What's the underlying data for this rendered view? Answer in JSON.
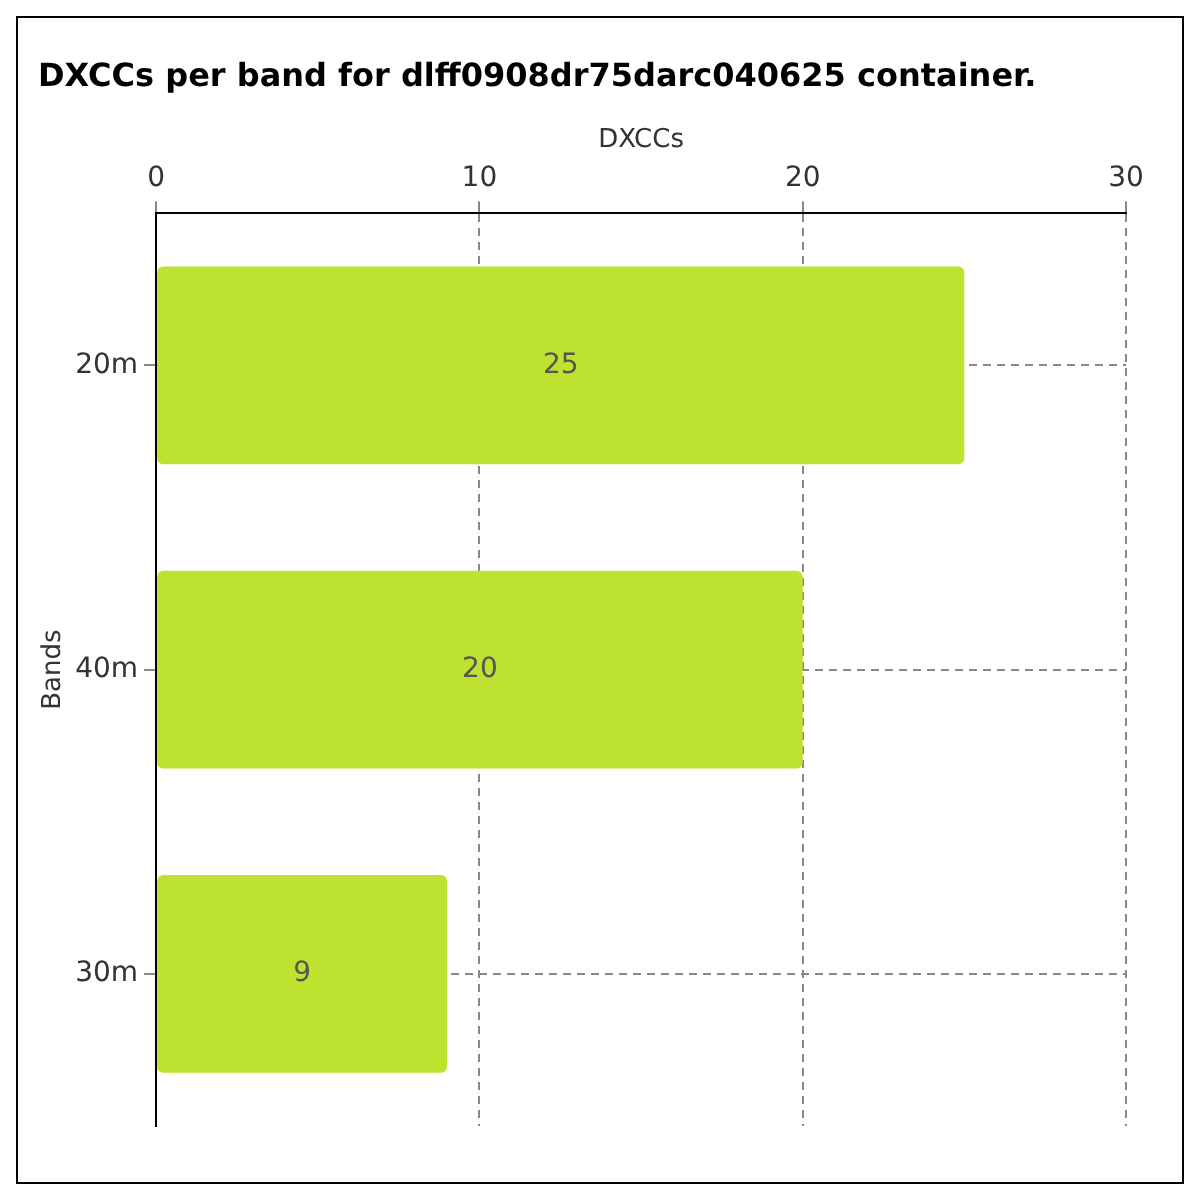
{
  "chart_data": {
    "type": "bar",
    "orientation": "horizontal",
    "title": "DXCCs per band for dlff0908dr75darc040625 container.",
    "xlabel": "DXCCs",
    "ylabel": "Bands",
    "categories": [
      "20m",
      "40m",
      "30m"
    ],
    "values": [
      25,
      20,
      9
    ],
    "color": "#bde22f",
    "xlim": [
      0,
      30
    ],
    "xticks": [
      0,
      10,
      20,
      30
    ],
    "grid": true,
    "data_labels": true,
    "legend": false
  }
}
